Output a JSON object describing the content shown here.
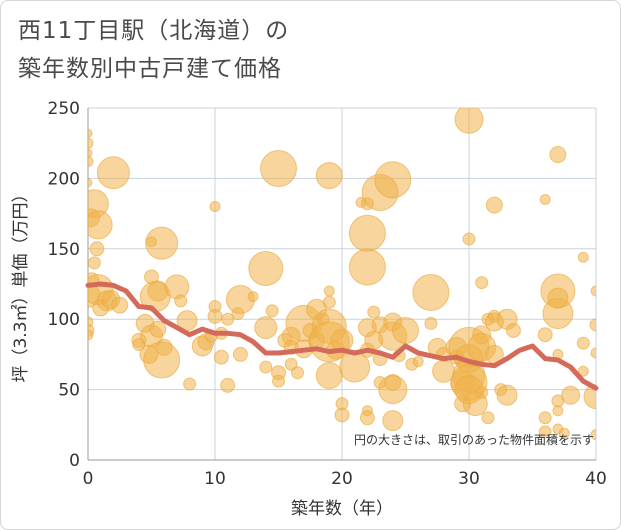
{
  "title_line1": "西11丁目駅（北海道）の",
  "title_line2": "築年数別中古戸建て価格",
  "chart_data": {
    "type": "scatter",
    "xlabel": "築年数（年）",
    "ylabel": "坪（3.3㎡）単価（万円）",
    "xlim": [
      0,
      40
    ],
    "ylim": [
      0,
      250
    ],
    "xticks": [
      0,
      10,
      20,
      30,
      40
    ],
    "yticks": [
      0,
      50,
      100,
      150,
      200,
      250
    ],
    "grid": true,
    "note": "円の大きさは、取引のあった物件面積を示す",
    "colors": {
      "bubble": "#f0b24a",
      "line": "#d46b5a",
      "grid": "#c8d3de"
    },
    "bubbles": [
      {
        "x": 0,
        "y": 232,
        "s": 4
      },
      {
        "x": 0,
        "y": 225,
        "s": 5
      },
      {
        "x": 0,
        "y": 218,
        "s": 4
      },
      {
        "x": 0,
        "y": 212,
        "s": 5
      },
      {
        "x": 0,
        "y": 197,
        "s": 4
      },
      {
        "x": 0.5,
        "y": 182,
        "s": 14
      },
      {
        "x": 0.2,
        "y": 172,
        "s": 9
      },
      {
        "x": 0.8,
        "y": 167,
        "s": 14
      },
      {
        "x": 0.7,
        "y": 150,
        "s": 7
      },
      {
        "x": 0.5,
        "y": 140,
        "s": 6
      },
      {
        "x": 0.3,
        "y": 128,
        "s": 7
      },
      {
        "x": 0,
        "y": 117,
        "s": 12
      },
      {
        "x": 0.8,
        "y": 121,
        "s": 15
      },
      {
        "x": 1.5,
        "y": 113,
        "s": 10
      },
      {
        "x": 1,
        "y": 108,
        "s": 8
      },
      {
        "x": 0,
        "y": 98,
        "s": 5
      },
      {
        "x": 0,
        "y": 92,
        "s": 6
      },
      {
        "x": 0,
        "y": 89,
        "s": 5
      },
      {
        "x": 2,
        "y": 204,
        "s": 16
      },
      {
        "x": 1.8,
        "y": 114,
        "s": 9
      },
      {
        "x": 2.5,
        "y": 110,
        "s": 8
      },
      {
        "x": 5,
        "y": 155,
        "s": 5
      },
      {
        "x": 5.8,
        "y": 154,
        "s": 16
      },
      {
        "x": 5,
        "y": 130,
        "s": 7
      },
      {
        "x": 5.5,
        "y": 120,
        "s": 10
      },
      {
        "x": 5.3,
        "y": 116,
        "s": 15
      },
      {
        "x": 7,
        "y": 123,
        "s": 12
      },
      {
        "x": 7.3,
        "y": 113,
        "s": 6
      },
      {
        "x": 4.5,
        "y": 97,
        "s": 9
      },
      {
        "x": 5,
        "y": 88,
        "s": 11
      },
      {
        "x": 5.5,
        "y": 93,
        "s": 8
      },
      {
        "x": 4,
        "y": 85,
        "s": 7
      },
      {
        "x": 4,
        "y": 82,
        "s": 6
      },
      {
        "x": 6,
        "y": 80,
        "s": 8
      },
      {
        "x": 4.8,
        "y": 75,
        "s": 9
      },
      {
        "x": 5.8,
        "y": 71,
        "s": 18
      },
      {
        "x": 7.8,
        "y": 99,
        "s": 10
      },
      {
        "x": 8,
        "y": 54,
        "s": 6
      },
      {
        "x": 9,
        "y": 81,
        "s": 10
      },
      {
        "x": 9.3,
        "y": 84,
        "s": 8
      },
      {
        "x": 9.7,
        "y": 88,
        "s": 6
      },
      {
        "x": 10,
        "y": 180,
        "s": 5
      },
      {
        "x": 10,
        "y": 109,
        "s": 6
      },
      {
        "x": 10,
        "y": 102,
        "s": 7
      },
      {
        "x": 10.5,
        "y": 90,
        "s": 6
      },
      {
        "x": 10.5,
        "y": 73,
        "s": 7
      },
      {
        "x": 11,
        "y": 53,
        "s": 7
      },
      {
        "x": 11,
        "y": 100,
        "s": 6
      },
      {
        "x": 11.8,
        "y": 104,
        "s": 6
      },
      {
        "x": 12,
        "y": 114,
        "s": 14
      },
      {
        "x": 12,
        "y": 75,
        "s": 7
      },
      {
        "x": 13,
        "y": 116,
        "s": 5
      },
      {
        "x": 14,
        "y": 136,
        "s": 17
      },
      {
        "x": 14,
        "y": 94,
        "s": 11
      },
      {
        "x": 14,
        "y": 66,
        "s": 6
      },
      {
        "x": 14.5,
        "y": 106,
        "s": 6
      },
      {
        "x": 15,
        "y": 207,
        "s": 18
      },
      {
        "x": 15,
        "y": 62,
        "s": 7
      },
      {
        "x": 15,
        "y": 56,
        "s": 6
      },
      {
        "x": 15.5,
        "y": 85,
        "s": 7
      },
      {
        "x": 16,
        "y": 88,
        "s": 9
      },
      {
        "x": 16,
        "y": 80,
        "s": 7
      },
      {
        "x": 16,
        "y": 68,
        "s": 6
      },
      {
        "x": 16.5,
        "y": 62,
        "s": 6
      },
      {
        "x": 17,
        "y": 97,
        "s": 18
      },
      {
        "x": 17,
        "y": 79,
        "s": 9
      },
      {
        "x": 17.5,
        "y": 92,
        "s": 7
      },
      {
        "x": 18,
        "y": 107,
        "s": 10
      },
      {
        "x": 18,
        "y": 85,
        "s": 8
      },
      {
        "x": 18.5,
        "y": 100,
        "s": 6
      },
      {
        "x": 19,
        "y": 202,
        "s": 13
      },
      {
        "x": 19,
        "y": 120,
        "s": 5
      },
      {
        "x": 19,
        "y": 112,
        "s": 6
      },
      {
        "x": 19,
        "y": 95,
        "s": 17
      },
      {
        "x": 19,
        "y": 84,
        "s": 20
      },
      {
        "x": 19,
        "y": 60,
        "s": 13
      },
      {
        "x": 19.5,
        "y": 78,
        "s": 9
      },
      {
        "x": 20,
        "y": 85,
        "s": 11
      },
      {
        "x": 20,
        "y": 32,
        "s": 7
      },
      {
        "x": 20,
        "y": 40,
        "s": 6
      },
      {
        "x": 21,
        "y": 66,
        "s": 15
      },
      {
        "x": 21.5,
        "y": 183,
        "s": 5
      },
      {
        "x": 22,
        "y": 182,
        "s": 6
      },
      {
        "x": 22,
        "y": 161,
        "s": 18
      },
      {
        "x": 22,
        "y": 137,
        "s": 18
      },
      {
        "x": 22,
        "y": 94,
        "s": 9
      },
      {
        "x": 22,
        "y": 78,
        "s": 7
      },
      {
        "x": 22.5,
        "y": 105,
        "s": 6
      },
      {
        "x": 22.5,
        "y": 85,
        "s": 9
      },
      {
        "x": 23,
        "y": 190,
        "s": 18
      },
      {
        "x": 23,
        "y": 96,
        "s": 8
      },
      {
        "x": 23,
        "y": 72,
        "s": 7
      },
      {
        "x": 23,
        "y": 55,
        "s": 6
      },
      {
        "x": 22,
        "y": 35,
        "s": 5
      },
      {
        "x": 22,
        "y": 30,
        "s": 7
      },
      {
        "x": 24,
        "y": 199,
        "s": 18
      },
      {
        "x": 24,
        "y": 98,
        "s": 9
      },
      {
        "x": 24,
        "y": 88,
        "s": 14
      },
      {
        "x": 24,
        "y": 55,
        "s": 8
      },
      {
        "x": 24,
        "y": 50,
        "s": 14
      },
      {
        "x": 24,
        "y": 28,
        "s": 10
      },
      {
        "x": 24.5,
        "y": 74,
        "s": 6
      },
      {
        "x": 25,
        "y": 92,
        "s": 13
      },
      {
        "x": 25.5,
        "y": 68,
        "s": 6
      },
      {
        "x": 26,
        "y": 70,
        "s": 5
      },
      {
        "x": 27,
        "y": 119,
        "s": 18
      },
      {
        "x": 27,
        "y": 97,
        "s": 6
      },
      {
        "x": 27.5,
        "y": 80,
        "s": 9
      },
      {
        "x": 28,
        "y": 75,
        "s": 7
      },
      {
        "x": 28,
        "y": 63,
        "s": 11
      },
      {
        "x": 29,
        "y": 80,
        "s": 10
      },
      {
        "x": 29,
        "y": 73,
        "s": 7
      },
      {
        "x": 29.5,
        "y": 55,
        "s": 12
      },
      {
        "x": 29.5,
        "y": 40,
        "s": 8
      },
      {
        "x": 30,
        "y": 242,
        "s": 14
      },
      {
        "x": 30,
        "y": 157,
        "s": 6
      },
      {
        "x": 30,
        "y": 80,
        "s": 20
      },
      {
        "x": 30,
        "y": 72,
        "s": 14
      },
      {
        "x": 30,
        "y": 60,
        "s": 16
      },
      {
        "x": 30,
        "y": 55,
        "s": 18
      },
      {
        "x": 30,
        "y": 50,
        "s": 14
      },
      {
        "x": 30.5,
        "y": 40,
        "s": 12
      },
      {
        "x": 31,
        "y": 126,
        "s": 6
      },
      {
        "x": 31,
        "y": 89,
        "s": 9
      },
      {
        "x": 31,
        "y": 80,
        "s": 14
      },
      {
        "x": 31,
        "y": 48,
        "s": 6
      },
      {
        "x": 31.5,
        "y": 100,
        "s": 6
      },
      {
        "x": 31.5,
        "y": 30,
        "s": 6
      },
      {
        "x": 32,
        "y": 181,
        "s": 8
      },
      {
        "x": 32,
        "y": 102,
        "s": 6
      },
      {
        "x": 32,
        "y": 98,
        "s": 9
      },
      {
        "x": 32,
        "y": 75,
        "s": 9
      },
      {
        "x": 32.5,
        "y": 50,
        "s": 6
      },
      {
        "x": 33,
        "y": 100,
        "s": 10
      },
      {
        "x": 33,
        "y": 46,
        "s": 10
      },
      {
        "x": 33.5,
        "y": 92,
        "s": 7
      },
      {
        "x": 36,
        "y": 185,
        "s": 5
      },
      {
        "x": 36,
        "y": 89,
        "s": 7
      },
      {
        "x": 36,
        "y": 30,
        "s": 6
      },
      {
        "x": 36,
        "y": 20,
        "s": 6
      },
      {
        "x": 37,
        "y": 217,
        "s": 8
      },
      {
        "x": 37,
        "y": 120,
        "s": 17
      },
      {
        "x": 37,
        "y": 115,
        "s": 10
      },
      {
        "x": 37,
        "y": 104,
        "s": 15
      },
      {
        "x": 37,
        "y": 75,
        "s": 5
      },
      {
        "x": 37,
        "y": 42,
        "s": 6
      },
      {
        "x": 37,
        "y": 35,
        "s": 5
      },
      {
        "x": 37,
        "y": 22,
        "s": 5
      },
      {
        "x": 37.5,
        "y": 19,
        "s": 5
      },
      {
        "x": 38,
        "y": 46,
        "s": 9
      },
      {
        "x": 39,
        "y": 144,
        "s": 5
      },
      {
        "x": 39,
        "y": 83,
        "s": 6
      },
      {
        "x": 39,
        "y": 63,
        "s": 5
      },
      {
        "x": 40,
        "y": 120,
        "s": 5
      },
      {
        "x": 40,
        "y": 96,
        "s": 6
      },
      {
        "x": 40,
        "y": 76,
        "s": 5
      },
      {
        "x": 40,
        "y": 45,
        "s": 12
      },
      {
        "x": 40,
        "y": 18,
        "s": 5
      }
    ],
    "line": {
      "x": [
        0,
        1,
        2,
        3,
        4,
        5,
        6,
        7,
        8,
        9,
        10,
        11,
        12,
        13,
        14,
        15,
        16,
        17,
        18,
        19,
        20,
        21,
        22,
        23,
        24,
        25,
        26,
        27,
        28,
        29,
        30,
        31,
        32,
        33,
        34,
        35,
        36,
        37,
        38,
        39,
        40
      ],
      "y": [
        124,
        125,
        124,
        120,
        109,
        108,
        99,
        94,
        89,
        93,
        90,
        90,
        89,
        84,
        76,
        76,
        77,
        78,
        79,
        77,
        78,
        76,
        78,
        76,
        73,
        81,
        76,
        74,
        72,
        73,
        70,
        68,
        67,
        72,
        78,
        81,
        72,
        71,
        66,
        56,
        51
      ]
    }
  }
}
